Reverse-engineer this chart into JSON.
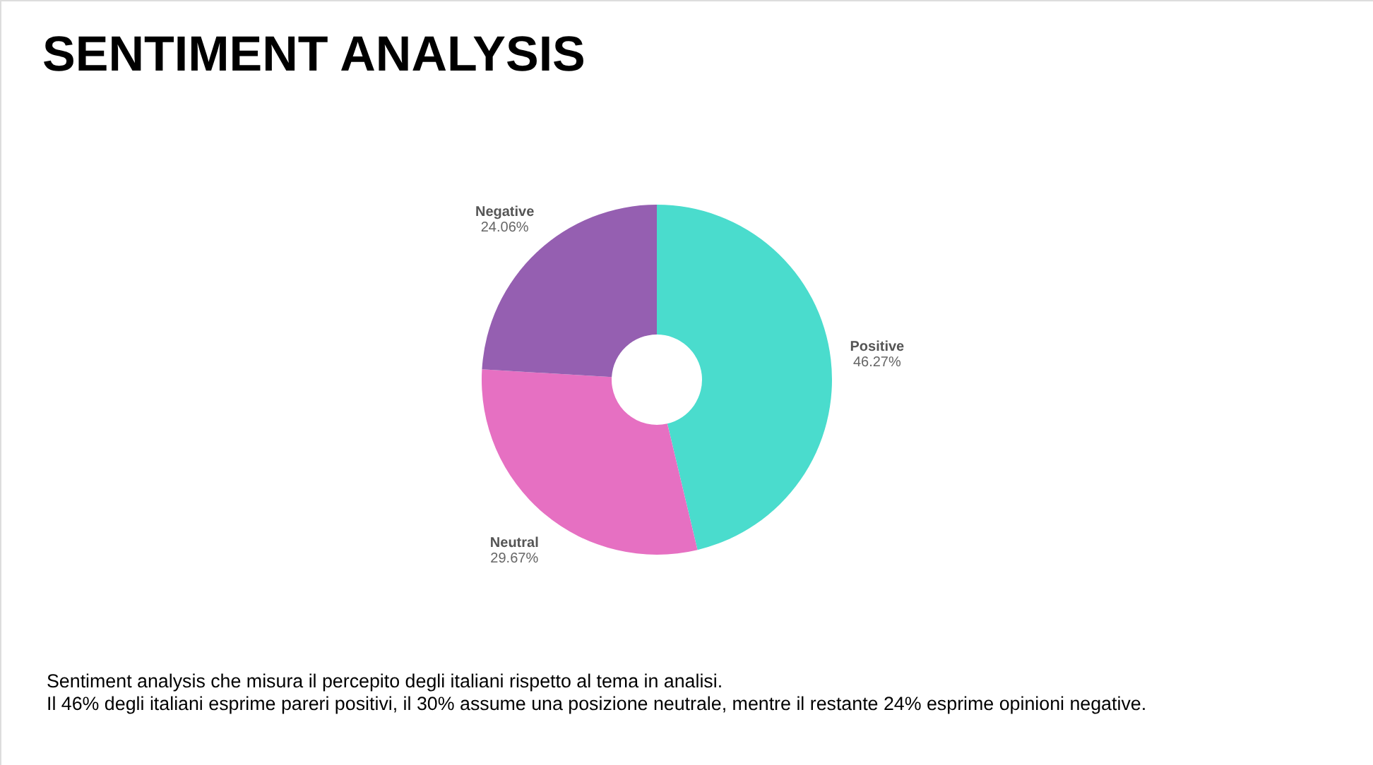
{
  "chart_data": {
    "type": "donut",
    "title": "SENTIMENT ANALYSIS",
    "categories": [
      "Positive",
      "Neutral",
      "Negative"
    ],
    "values": [
      46.27,
      29.67,
      24.06
    ],
    "colors": [
      "#4adccd",
      "#e670c2",
      "#955fb1"
    ],
    "value_labels": [
      "46.27%",
      "29.67%",
      "24.06%"
    ],
    "annotations": [
      "Sentiment analysis che misura il percepito degli italiani rispetto al tema in analisi.",
      "Il 46% degli italiani esprime pareri positivi, il 30% assume una posizione neutrale, mentre il restante 24% esprime opinioni negative."
    ]
  }
}
